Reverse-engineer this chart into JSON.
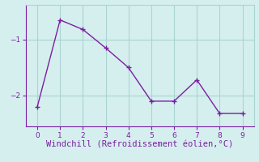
{
  "x": [
    0,
    1,
    2,
    3,
    4,
    5,
    6,
    7,
    8,
    9
  ],
  "y": [
    -2.2,
    -0.65,
    -0.82,
    -1.15,
    -1.5,
    -2.1,
    -2.1,
    -1.72,
    -2.32,
    -2.32
  ],
  "line_color": "#7b1fa2",
  "marker": "+",
  "marker_color": "#7b1fa2",
  "bg_color": "#d5efee",
  "grid_color": "#aad4d2",
  "tick_color": "#7b1fa2",
  "xlabel": "Windchill (Refroidissement éolien,°C)",
  "xlabel_color": "#7b1fa2",
  "xlim": [
    -0.5,
    9.5
  ],
  "ylim": [
    -2.55,
    -0.38
  ],
  "yticks": [
    -2,
    -1
  ],
  "xticks": [
    0,
    1,
    2,
    3,
    4,
    5,
    6,
    7,
    8,
    9
  ],
  "tick_fontsize": 6.5,
  "xlabel_fontsize": 7.5,
  "linewidth": 1.0,
  "markersize": 4
}
